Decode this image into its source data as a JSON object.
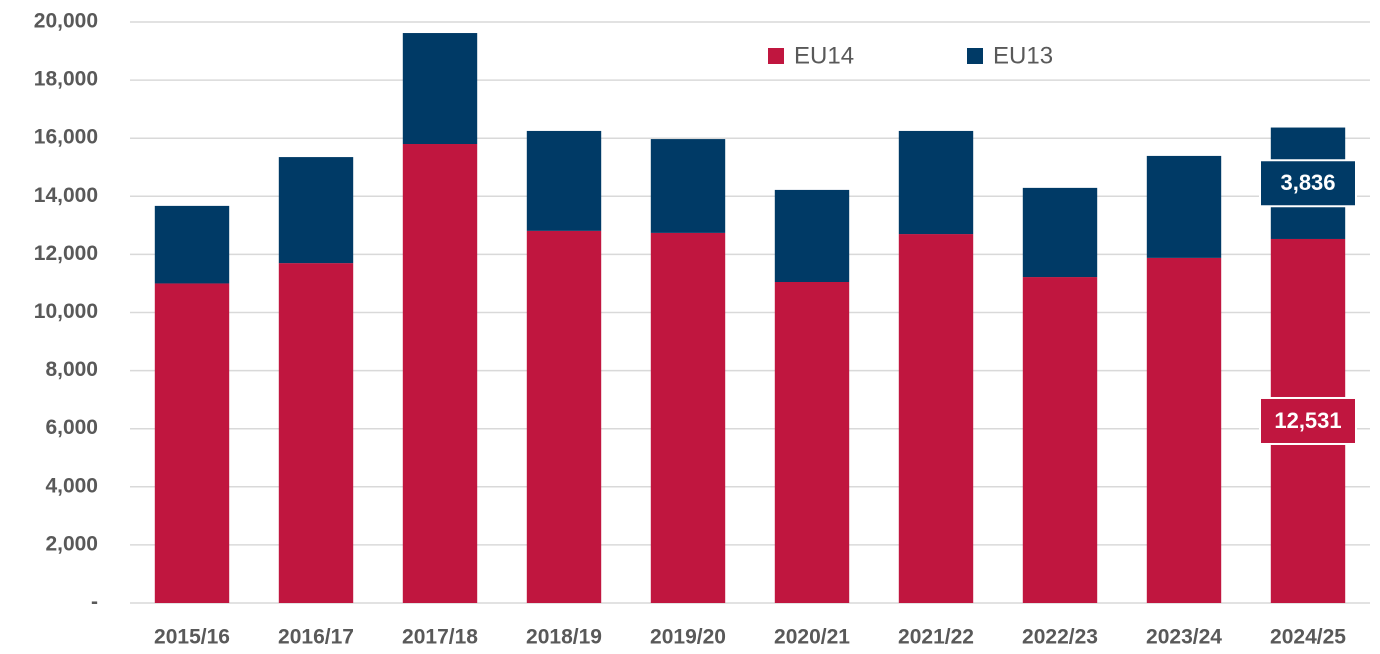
{
  "chart_data": {
    "type": "stacked_bar",
    "categories": [
      "2015/16",
      "2016/17",
      "2017/18",
      "2018/19",
      "2019/20",
      "2020/21",
      "2021/22",
      "2022/23",
      "2023/24",
      "2024/25"
    ],
    "series": [
      {
        "name": "EU14",
        "color": "#c0163f",
        "values": [
          11000,
          11700,
          15800,
          12810,
          12740,
          11050,
          12700,
          11220,
          11880,
          12531
        ],
        "value_labels": [
          null,
          null,
          null,
          null,
          null,
          null,
          null,
          null,
          null,
          "12,531"
        ]
      },
      {
        "name": "EU13",
        "color": "#003a66",
        "values": [
          2670,
          3650,
          3820,
          3440,
          3230,
          3170,
          3550,
          3070,
          3510,
          3836
        ],
        "value_labels": [
          null,
          null,
          null,
          null,
          null,
          null,
          null,
          null,
          null,
          "3,836"
        ]
      }
    ],
    "ylim": [
      0,
      20000
    ],
    "yticks": [
      {
        "value": 0,
        "label": "-"
      },
      {
        "value": 2000,
        "label": "2,000"
      },
      {
        "value": 4000,
        "label": "4,000"
      },
      {
        "value": 6000,
        "label": "6,000"
      },
      {
        "value": 8000,
        "label": "8,000"
      },
      {
        "value": 10000,
        "label": "10,000"
      },
      {
        "value": 12000,
        "label": "12,000"
      },
      {
        "value": 14000,
        "label": "14,000"
      },
      {
        "value": 16000,
        "label": "16,000"
      },
      {
        "value": 18000,
        "label": "18,000"
      },
      {
        "value": 20000,
        "label": "20,000"
      }
    ],
    "grid": true,
    "legend": "top"
  }
}
